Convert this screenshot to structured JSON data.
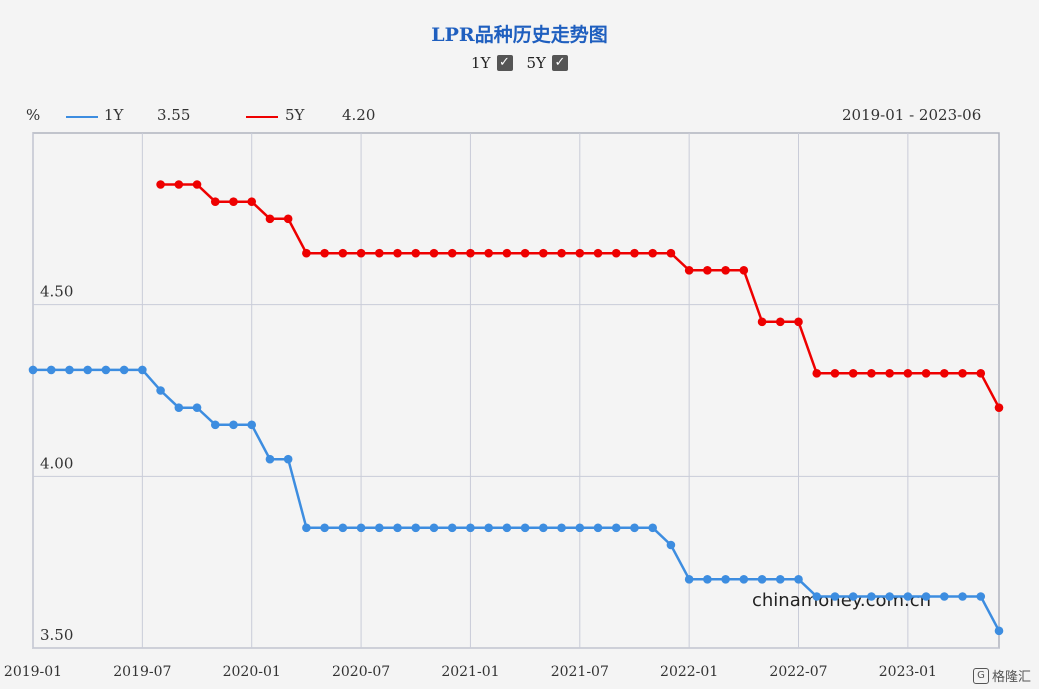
{
  "title": "LPR品种历史走势图",
  "toggles": [
    {
      "label": "1Y",
      "checked": true
    },
    {
      "label": "5Y",
      "checked": true
    }
  ],
  "legend": {
    "unit": "%",
    "series_1y_label": "1Y",
    "series_1y_value": "3.55",
    "series_5y_label": "5Y",
    "series_5y_value": "4.20",
    "date_range": "2019-01 - 2023-06"
  },
  "watermark": "chinamoney.com.cn",
  "corner_brand": "格隆汇",
  "colors": {
    "y1": "#3d8de0",
    "y5": "#ee0000",
    "grid": "#c9ccd8",
    "axis": "#b0b3bf"
  },
  "chart_data": {
    "type": "line",
    "xlabel": "",
    "ylabel": "%",
    "x_ticks": [
      "2019-01",
      "2019-07",
      "2020-01",
      "2020-07",
      "2021-01",
      "2021-07",
      "2022-01",
      "2022-07",
      "2023-01"
    ],
    "y_ticks": [
      "3.50",
      "4.00",
      "4.50"
    ],
    "ylim": [
      3.5,
      5.0
    ],
    "grid": true,
    "legend_position": "top-left",
    "months": [
      "2019-01",
      "2019-02",
      "2019-03",
      "2019-04",
      "2019-05",
      "2019-06",
      "2019-07",
      "2019-08",
      "2019-09",
      "2019-10",
      "2019-11",
      "2019-12",
      "2020-01",
      "2020-02",
      "2020-03",
      "2020-04",
      "2020-05",
      "2020-06",
      "2020-07",
      "2020-08",
      "2020-09",
      "2020-10",
      "2020-11",
      "2020-12",
      "2021-01",
      "2021-02",
      "2021-03",
      "2021-04",
      "2021-05",
      "2021-06",
      "2021-07",
      "2021-08",
      "2021-09",
      "2021-10",
      "2021-11",
      "2021-12",
      "2022-01",
      "2022-02",
      "2022-03",
      "2022-04",
      "2022-05",
      "2022-06",
      "2022-07",
      "2022-08",
      "2022-09",
      "2022-10",
      "2022-11",
      "2022-12",
      "2023-01",
      "2023-02",
      "2023-03",
      "2023-04",
      "2023-05",
      "2023-06"
    ],
    "series": [
      {
        "name": "1Y",
        "values": [
          4.31,
          4.31,
          4.31,
          4.31,
          4.31,
          4.31,
          4.31,
          4.25,
          4.2,
          4.2,
          4.15,
          4.15,
          4.15,
          4.05,
          4.05,
          3.85,
          3.85,
          3.85,
          3.85,
          3.85,
          3.85,
          3.85,
          3.85,
          3.85,
          3.85,
          3.85,
          3.85,
          3.85,
          3.85,
          3.85,
          3.85,
          3.85,
          3.85,
          3.85,
          3.85,
          3.8,
          3.7,
          3.7,
          3.7,
          3.7,
          3.7,
          3.7,
          3.7,
          3.65,
          3.65,
          3.65,
          3.65,
          3.65,
          3.65,
          3.65,
          3.65,
          3.65,
          3.65,
          3.55
        ]
      },
      {
        "name": "5Y",
        "values": [
          null,
          null,
          null,
          null,
          null,
          null,
          null,
          4.85,
          4.85,
          4.85,
          4.8,
          4.8,
          4.8,
          4.75,
          4.75,
          4.65,
          4.65,
          4.65,
          4.65,
          4.65,
          4.65,
          4.65,
          4.65,
          4.65,
          4.65,
          4.65,
          4.65,
          4.65,
          4.65,
          4.65,
          4.65,
          4.65,
          4.65,
          4.65,
          4.65,
          4.65,
          4.6,
          4.6,
          4.6,
          4.6,
          4.45,
          4.45,
          4.45,
          4.3,
          4.3,
          4.3,
          4.3,
          4.3,
          4.3,
          4.3,
          4.3,
          4.3,
          4.3,
          4.2
        ]
      }
    ]
  }
}
